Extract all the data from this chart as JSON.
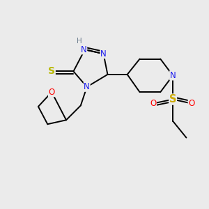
{
  "bg_color": "#ebebeb",
  "atom_colors": {
    "N": "#1a1aee",
    "O": "#ff0000",
    "S_thiol": "#b8b800",
    "S_sulfonyl": "#ccaa00",
    "C": "#000000",
    "H": "#708090"
  },
  "bond_color": "#000000",
  "bond_lw": 1.4,
  "font_size_atom": 8.5,
  "font_size_H": 7.5
}
